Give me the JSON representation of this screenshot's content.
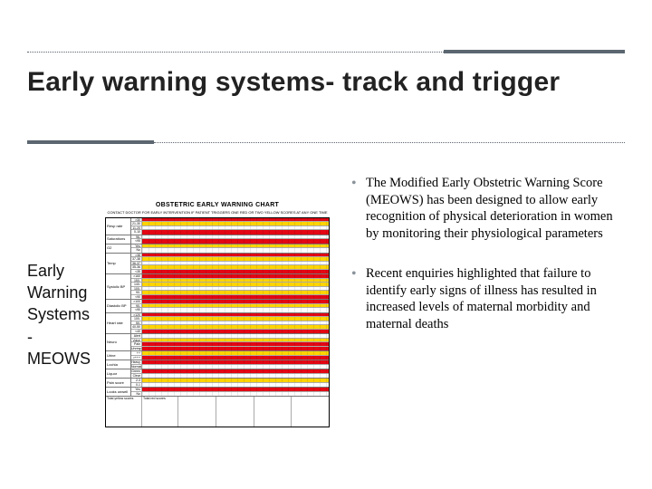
{
  "title": "Early warning systems- track and trigger",
  "left_label_lines": [
    "Early",
    "Warning",
    "Systems -",
    "MEOWS"
  ],
  "chart": {
    "title": "OBSTETRIC EARLY WARNING CHART",
    "subtitle": "CONTACT DOCTOR FOR EARLY INTERVENTION IF PATIENT TRIGGERS ONE RED OR TWO YELLOW SCORES AT ANY ONE TIME",
    "colors": {
      "red": "#e30613",
      "yellow": "#ffd400",
      "white": "#ffffff",
      "border": "#000000",
      "grid": "#aaaaaa"
    },
    "blocks": [
      {
        "label": "Resp rate",
        "rows": [
          {
            "v": ">30",
            "c": "red"
          },
          {
            "v": "21-30",
            "c": "yellow"
          },
          {
            "v": "11-20",
            "c": "white"
          },
          {
            "v": "0-10",
            "c": "red"
          }
        ]
      },
      {
        "label": "Saturations",
        "rows": [
          {
            "v": "96-100",
            "c": "white"
          },
          {
            "v": "<95",
            "c": "red"
          }
        ]
      },
      {
        "label": "O2",
        "rows": [
          {
            "v": "Yes",
            "c": "yellow"
          },
          {
            "v": "No",
            "c": "white"
          }
        ]
      },
      {
        "label": "Temp",
        "rows": [
          {
            "v": ">38",
            "c": "red"
          },
          {
            "v": "37-38",
            "c": "yellow"
          },
          {
            "v": "36-37",
            "c": "white"
          },
          {
            "v": "35-36",
            "c": "yellow"
          },
          {
            "v": "<35",
            "c": "red"
          }
        ]
      },
      {
        "label": "Systolic BP",
        "rows": [
          {
            "v": ">160",
            "c": "red"
          },
          {
            "v": "150-160",
            "c": "yellow"
          },
          {
            "v": "140-150",
            "c": "yellow"
          },
          {
            "v": "100-140",
            "c": "white"
          },
          {
            "v": "90-100",
            "c": "yellow"
          },
          {
            "v": "<90",
            "c": "red"
          }
        ]
      },
      {
        "label": "Diastolic BP",
        "rows": [
          {
            "v": ">100",
            "c": "red"
          },
          {
            "v": "90-100",
            "c": "yellow"
          },
          {
            "v": "<90",
            "c": "white"
          }
        ]
      },
      {
        "label": "Heart rate",
        "rows": [
          {
            "v": ">120",
            "c": "red"
          },
          {
            "v": "100-120",
            "c": "yellow"
          },
          {
            "v": "50-100",
            "c": "white"
          },
          {
            "v": "40-50",
            "c": "yellow"
          },
          {
            "v": "<40",
            "c": "red"
          }
        ]
      },
      {
        "label": "Neuro",
        "rows": [
          {
            "v": "Alert",
            "c": "white"
          },
          {
            "v": "Voice",
            "c": "yellow"
          },
          {
            "v": "Pain",
            "c": "red"
          },
          {
            "v": "Unresp",
            "c": "red"
          }
        ]
      },
      {
        "label": "Urine",
        "rows": [
          {
            "v": "++",
            "c": "yellow"
          },
          {
            "v": ">+++",
            "c": "red"
          }
        ]
      },
      {
        "label": "Lochia",
        "rows": [
          {
            "v": "Heavy",
            "c": "red"
          },
          {
            "v": "Normal",
            "c": "white"
          }
        ]
      },
      {
        "label": "Liquor",
        "rows": [
          {
            "v": "Green",
            "c": "red"
          },
          {
            "v": "Clear",
            "c": "white"
          }
        ]
      },
      {
        "label": "Pain score",
        "rows": [
          {
            "v": "2-3",
            "c": "yellow"
          },
          {
            "v": "0-1",
            "c": "white"
          }
        ]
      },
      {
        "label": "Looks unwell",
        "rows": [
          {
            "v": "Yes",
            "c": "red"
          },
          {
            "v": "No",
            "c": "white"
          }
        ]
      }
    ],
    "footer_cols": [
      "Total yellow scores",
      "Total red scores",
      "",
      "",
      "",
      ""
    ]
  },
  "bullets": [
    "The Modified Early Obstetric Warning Score (MEOWS) has been designed to allow early recognition of physical deterioration in women by monitoring their physiological parameters",
    "Recent enquiries highlighted that failure to identify early signs of illness has resulted in increased levels of maternal morbidity and maternal deaths"
  ]
}
